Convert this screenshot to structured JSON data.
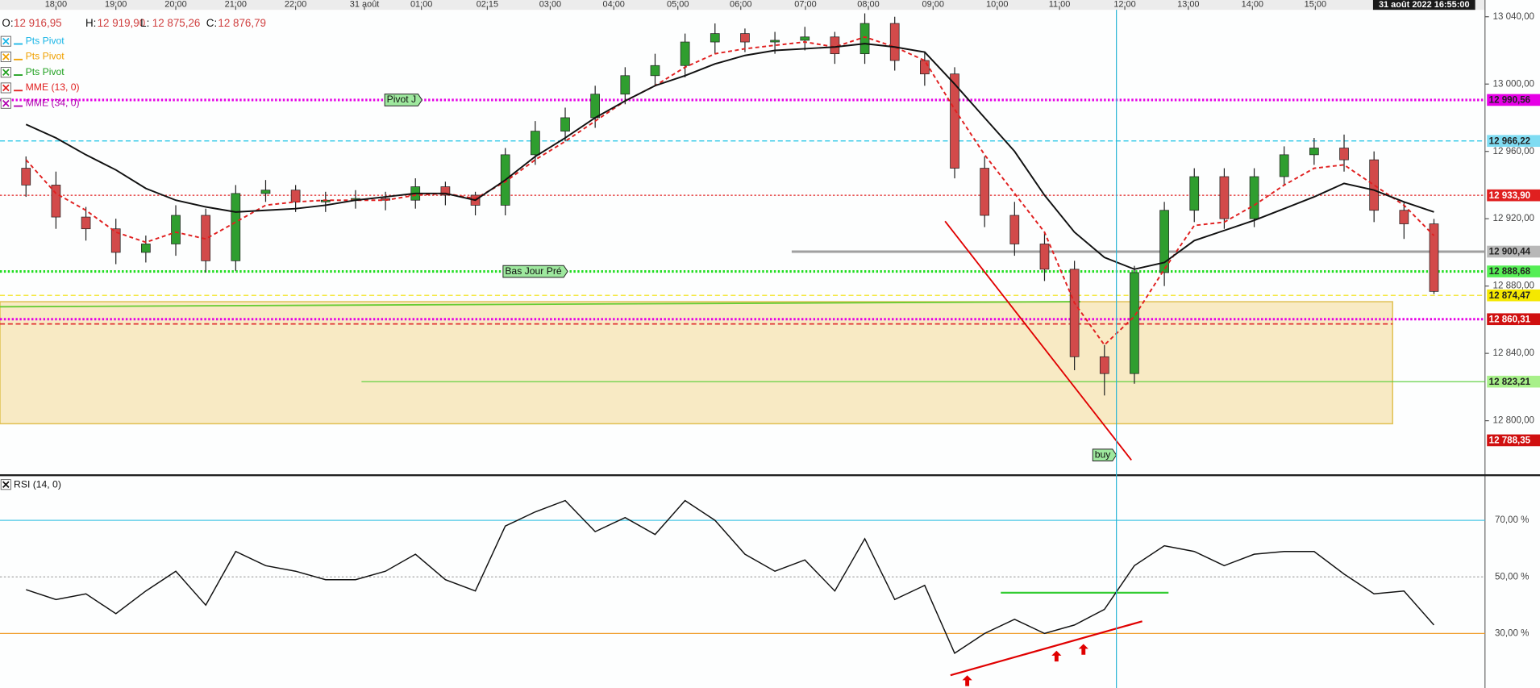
{
  "chart_data": {
    "type": "candlestick",
    "date_label": "31 août 2022 16:55:00",
    "ohlc_header": [
      {
        "label": "O:",
        "value": "12 916,95"
      },
      {
        "label": "H:",
        "value": "12 919,90"
      },
      {
        "label": "L:",
        "value": "12 875,26"
      },
      {
        "label": "C:",
        "value": "12 876,79"
      }
    ],
    "indicators": [
      {
        "name": "Pts Pivot",
        "color": "#19b5e6"
      },
      {
        "name": "Pts Pivot",
        "color": "#f0a000"
      },
      {
        "name": "Pts Pivot",
        "color": "#20a020"
      }
    ],
    "xlim": [
      -0.934,
      23.852
    ],
    "xticks": [
      {
        "value": 0,
        "label": "18:00"
      },
      {
        "value": 1,
        "label": "19:00"
      },
      {
        "value": 2,
        "label": "20:00"
      },
      {
        "value": 3,
        "label": "21:00"
      },
      {
        "value": 4,
        "label": "22:00"
      },
      {
        "value": 5.15,
        "label": "31 août"
      },
      {
        "value": 6.1,
        "label": "01:00"
      },
      {
        "value": 7.2,
        "label": "02:15"
      },
      {
        "value": 8.25,
        "label": "03:00"
      },
      {
        "value": 9.31,
        "label": "04:00"
      },
      {
        "value": 10.38,
        "label": "05:00"
      },
      {
        "value": 11.43,
        "label": "06:00"
      },
      {
        "value": 12.51,
        "label": "07:00"
      },
      {
        "value": 13.56,
        "label": "08:00"
      },
      {
        "value": 14.64,
        "label": "09:00"
      },
      {
        "value": 15.71,
        "label": "10:00"
      },
      {
        "value": 16.75,
        "label": "11:00"
      },
      {
        "value": 17.84,
        "label": "12:00"
      },
      {
        "value": 18.9,
        "label": "13:00"
      },
      {
        "value": 19.97,
        "label": "14:00"
      },
      {
        "value": 21.02,
        "label": "15:00"
      }
    ],
    "ylim": [
      12768.5,
      13044.1
    ],
    "yticks": [
      {
        "value": 13040,
        "label": "13 040,00"
      },
      {
        "value": 13000,
        "label": "13 000,00"
      },
      {
        "value": 12960,
        "label": "12 960,00"
      },
      {
        "value": 12920,
        "label": "12 920,00"
      },
      {
        "value": 12880,
        "label": "12 880,00"
      },
      {
        "value": 12840,
        "label": "12 840,00"
      },
      {
        "value": 12800,
        "label": "12 800,00"
      }
    ],
    "x": [
      -0.5,
      0,
      0.5,
      1,
      1.5,
      2,
      2.5,
      3,
      3.5,
      4,
      4.5,
      5,
      5.5,
      6,
      6.5,
      7,
      7.5,
      8,
      8.5,
      9,
      9.5,
      10,
      10.5,
      11,
      11.5,
      12,
      12.5,
      13,
      13.5,
      14,
      14.5,
      15,
      15.5,
      16,
      16.5,
      17,
      17.5,
      18,
      18.5,
      19,
      19.5,
      20,
      20.5,
      21,
      21.5,
      22,
      22.5,
      23
    ],
    "ohlc": {
      "up_color": "#2f9e2f",
      "down_color": "#d24a4a",
      "open": [
        12950,
        12940,
        12921,
        12914,
        12900,
        12905,
        12922,
        12895,
        12935,
        12937,
        12930,
        12931,
        12932,
        12931,
        12939,
        12934,
        12928,
        12958,
        12972,
        12980,
        12994,
        13005,
        13011,
        13025,
        13030,
        13025,
        13026,
        13028,
        13018,
        13036,
        13014,
        13006,
        12950,
        12922,
        12905,
        12890,
        12838,
        12828,
        12888,
        12925,
        12945,
        12920,
        12945,
        12958,
        12962,
        12955,
        12925,
        12916.95
      ],
      "high": [
        12957,
        12948,
        12927,
        12920,
        12910,
        12928,
        12926,
        12940,
        12943,
        12940,
        12936,
        12937,
        12936,
        12944,
        12942,
        12936,
        12962,
        12978,
        12986,
        12999,
        13010,
        13018,
        13030,
        13036,
        13033,
        13031,
        13034,
        13031,
        13042,
        13040,
        13019,
        13010,
        12957,
        12930,
        12912,
        12895,
        12845,
        12892,
        12930,
        12950,
        12950,
        12950,
        12963,
        12968,
        12970,
        12960,
        12930,
        12919.9
      ],
      "low": [
        12933,
        12914,
        12907,
        12893,
        12894,
        12898,
        12888,
        12889,
        12930,
        12924,
        12924,
        12926,
        12925,
        12926,
        12928,
        12922,
        12922,
        12952,
        12966,
        12974,
        12988,
        12999,
        13004,
        13018,
        13019,
        13018,
        13020,
        13012,
        13012,
        13008,
        12999,
        12944,
        12915,
        12898,
        12883,
        12830,
        12815,
        12822,
        12880,
        12918,
        12914,
        12915,
        12940,
        12952,
        12948,
        12918,
        12908,
        12875.26
      ],
      "close": [
        12940,
        12921,
        12914,
        12900,
        12905,
        12922,
        12895,
        12935,
        12937,
        12930,
        12931,
        12932,
        12931,
        12939,
        12934,
        12928,
        12958,
        12972,
        12980,
        12994,
        13005,
        13011,
        13025,
        13030,
        13025,
        13026,
        13028,
        13018,
        13036,
        13014,
        13006,
        12950,
        12922,
        12905,
        12890,
        12838,
        12828,
        12888,
        12925,
        12945,
        12920,
        12945,
        12958,
        12962,
        12955,
        12925,
        12916.95,
        12876.79
      ]
    },
    "overlays": [
      {
        "name": "MME (13, 0)",
        "color": "#e02020",
        "legend_color": "#e02020",
        "dashed": true,
        "values": [
          12955,
          12935,
          12925,
          12912,
          12906,
          12912,
          12908,
          12918,
          12928,
          12930,
          12931,
          12931,
          12931,
          12934,
          12935,
          12932,
          12942,
          12955,
          12966,
          12978,
          12990,
          12999,
          13010,
          13018,
          13021,
          13023,
          13025,
          13022,
          13028,
          13022,
          13014,
          12985,
          12958,
          12935,
          12912,
          12870,
          12845,
          12862,
          12890,
          12916,
          12918,
          12928,
          12940,
          12950,
          12952,
          12940,
          12928,
          12910
        ]
      },
      {
        "name": "MME (34, 0)",
        "color": "#111111",
        "legend_color": "#b000b0",
        "dashed": false,
        "values": [
          12976,
          12968,
          12958,
          12949,
          12938,
          12931,
          12927,
          12924,
          12925,
          12926,
          12928,
          12931,
          12933,
          12935,
          12935,
          12931,
          12943,
          12957,
          12968,
          12980,
          12990,
          12999,
          13005,
          13012,
          13017,
          13020,
          13021,
          13022,
          13024,
          13022,
          13019,
          13000,
          12980,
          12960,
          12934,
          12912,
          12897,
          12890,
          12894,
          12907,
          12913,
          12919,
          12926,
          12933,
          12941,
          12937,
          12930,
          12924
        ]
      }
    ],
    "levels": [
      {
        "value": 12990.56,
        "label": "12 990,56",
        "color": "#e600e6",
        "style": "dotted-thick",
        "label_bg": "#e600e6",
        "label_text": "#222222"
      },
      {
        "value": 12966.22,
        "label": "12 966,22",
        "color": "#19c3e6",
        "style": "dashed",
        "label_bg": "#7fdcf2",
        "label_text": "#222222"
      },
      {
        "value": 12933.9,
        "label": "12 933,90",
        "color": "#e02020",
        "style": "dotted",
        "label_bg": "#e02020",
        "label_text": "#ffffff"
      },
      {
        "value": 12900.44,
        "label": "12 900,44",
        "color": "#a0a0a0",
        "style": "solid-thick",
        "from": 12.28,
        "label_bg": "#b8b8b8",
        "label_text": "#222222"
      },
      {
        "value": 12888.68,
        "label": "12 888,68",
        "color": "#22dd22",
        "style": "dotted-thick",
        "label_bg": "#55ee55",
        "label_text": "#222222"
      },
      {
        "value": 12874.47,
        "label": "12 874,47",
        "color": "#f2e000",
        "style": "dashed",
        "label_bg": "#f5e800",
        "label_text": "#222222"
      },
      {
        "value": 12860.31,
        "label": "12 860,31",
        "color": "#e600e6",
        "style": "dotted-thick",
        "label_bg": "#d01010",
        "label_text": "#ffffff"
      },
      {
        "value": 12823.21,
        "label": "12 823,21",
        "color": "#55cc33",
        "style": "solid",
        "from": 5.1,
        "label_bg": "#a8f08a",
        "label_text": "#222222"
      },
      {
        "value": 12788.35,
        "label": "12 788,35",
        "color": "#d01010",
        "style": "none",
        "label_bg": "#d01010",
        "label_text": "#ffffff"
      }
    ],
    "zone": {
      "x": [
        -0.934,
        22.31
      ],
      "y": [
        12798.2,
        12870.7
      ],
      "fill": "#f8eac4",
      "stroke": "#e0c050"
    },
    "lines": [
      {
        "points": [
          [
            -0.934,
            12867.7
          ],
          [
            17.1,
            12870.7
          ]
        ],
        "color": "#66cc33",
        "dashed": false
      },
      {
        "points": [
          [
            -0.934,
            12857.5
          ],
          [
            22.31,
            12857.5
          ]
        ],
        "color": "#e03030",
        "dashed": true
      },
      {
        "points": [
          [
            14.84,
            12918.5
          ],
          [
            17.95,
            12776.6
          ]
        ],
        "color": "#e00000",
        "dashed": false
      }
    ],
    "annotations": [
      {
        "text": "Pivot J",
        "x": 6.11,
        "y": 12990.56
      },
      {
        "text": "Bas Jour Pré",
        "x": 8.54,
        "y": 12888.68
      },
      {
        "text": "buy",
        "x": 17.7,
        "y": 12779.6
      }
    ],
    "crosshair_x": 17.7,
    "rsi": {
      "title": "RSI (14, 0)",
      "ylim": [
        10.7,
        85.1
      ],
      "levels": [
        {
          "value": 70,
          "label": "70,00 %",
          "color": "#4cc8e6",
          "style": "solid"
        },
        {
          "value": 50,
          "label": "50,00 %",
          "color": "#aaaaaa",
          "style": "dotted"
        },
        {
          "value": 30,
          "label": "30,00 %",
          "color": "#f0a030",
          "style": "solid"
        }
      ],
      "color": "#111111",
      "values": [
        45.5,
        42,
        44,
        37,
        45,
        52,
        40,
        59,
        54,
        52,
        49,
        49,
        52,
        58,
        49,
        45,
        68,
        73,
        77,
        66,
        71,
        65,
        77,
        70,
        58,
        52,
        56,
        45,
        63.5,
        42,
        47,
        23,
        30,
        35,
        30,
        33,
        38.5,
        54,
        61,
        59,
        54,
        58,
        59,
        59,
        51,
        44,
        45,
        33
      ],
      "green_line": {
        "x": [
          15.77,
          18.57
        ],
        "value": 44.4,
        "color": "#33cc33"
      },
      "trendline": {
        "points": [
          [
            14.93,
            15.2
          ],
          [
            18.13,
            34.3
          ]
        ],
        "color": "#e00000"
      },
      "arrows": [
        {
          "x": 15.21,
          "y": 15.2
        },
        {
          "x": 16.7,
          "y": 23.9
        },
        {
          "x": 17.15,
          "y": 26.3
        }
      ]
    }
  }
}
